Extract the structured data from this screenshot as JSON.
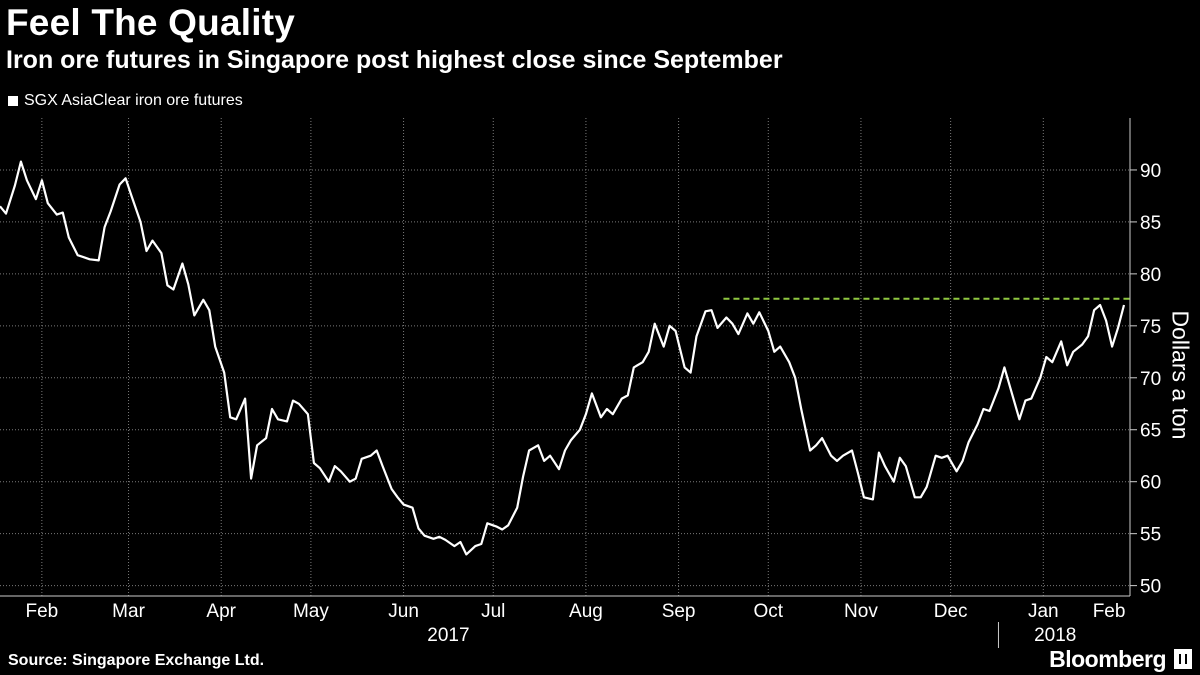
{
  "header": {
    "title": "Feel The Quality",
    "subtitle": "Iron ore futures in Singapore post highest close since September"
  },
  "footer": {
    "source": "Source: Singapore Exchange Ltd.",
    "brand": "Bloomberg"
  },
  "chart_data": {
    "type": "line",
    "ylabel": "Dollars a ton",
    "ylim": [
      49,
      95
    ],
    "yticks": [
      50,
      55,
      60,
      65,
      70,
      75,
      80,
      85,
      90
    ],
    "grid": true,
    "legend_position": "top-left",
    "x_range": [
      "2017-02-01",
      "2018-02-14"
    ],
    "months": [
      {
        "label": "Feb",
        "date": "2017-02-01"
      },
      {
        "label": "Mar",
        "date": "2017-03-01"
      },
      {
        "label": "Apr",
        "date": "2017-04-01"
      },
      {
        "label": "May",
        "date": "2017-05-01"
      },
      {
        "label": "Jun",
        "date": "2017-06-01"
      },
      {
        "label": "Jul",
        "date": "2017-07-01"
      },
      {
        "label": "Aug",
        "date": "2017-08-01"
      },
      {
        "label": "Sep",
        "date": "2017-09-01"
      },
      {
        "label": "Oct",
        "date": "2017-10-01"
      },
      {
        "label": "Nov",
        "date": "2017-11-01"
      },
      {
        "label": "Dec",
        "date": "2017-12-01"
      },
      {
        "label": "Jan",
        "date": "2018-01-01"
      },
      {
        "label": "Feb",
        "date": "2018-02-01"
      }
    ],
    "years": [
      {
        "label": "2017",
        "date": "2017-07-01"
      },
      {
        "label": "2018",
        "date": "2018-01-20"
      }
    ],
    "year_divider": "2018-01-01",
    "series": [
      {
        "name": "SGX AsiaClear iron ore futures",
        "color": "#ffffff",
        "points": [
          [
            "2017-02-01",
            86.5
          ],
          [
            "2017-02-03",
            85.8
          ],
          [
            "2017-02-06",
            88.5
          ],
          [
            "2017-02-08",
            90.8
          ],
          [
            "2017-02-10",
            89.0
          ],
          [
            "2017-02-13",
            87.2
          ],
          [
            "2017-02-15",
            89.0
          ],
          [
            "2017-02-17",
            86.8
          ],
          [
            "2017-02-20",
            85.7
          ],
          [
            "2017-02-22",
            85.9
          ],
          [
            "2017-02-24",
            83.5
          ],
          [
            "2017-02-27",
            81.8
          ],
          [
            "2017-03-01",
            81.6
          ],
          [
            "2017-03-03",
            81.4
          ],
          [
            "2017-03-06",
            81.3
          ],
          [
            "2017-03-08",
            84.5
          ],
          [
            "2017-03-10",
            86.0
          ],
          [
            "2017-03-13",
            88.6
          ],
          [
            "2017-03-15",
            89.2
          ],
          [
            "2017-03-17",
            87.5
          ],
          [
            "2017-03-20",
            85.0
          ],
          [
            "2017-03-22",
            82.2
          ],
          [
            "2017-03-24",
            83.2
          ],
          [
            "2017-03-27",
            82.0
          ],
          [
            "2017-03-29",
            78.9
          ],
          [
            "2017-03-31",
            78.5
          ],
          [
            "2017-04-03",
            81.0
          ],
          [
            "2017-04-05",
            79.0
          ],
          [
            "2017-04-07",
            76.0
          ],
          [
            "2017-04-10",
            77.5
          ],
          [
            "2017-04-12",
            76.5
          ],
          [
            "2017-04-14",
            73.0
          ],
          [
            "2017-04-17",
            70.5
          ],
          [
            "2017-04-19",
            66.2
          ],
          [
            "2017-04-21",
            66.0
          ],
          [
            "2017-04-24",
            68.0
          ],
          [
            "2017-04-26",
            60.3
          ],
          [
            "2017-04-28",
            63.5
          ],
          [
            "2017-05-01",
            64.2
          ],
          [
            "2017-05-03",
            67.0
          ],
          [
            "2017-05-05",
            66.0
          ],
          [
            "2017-05-08",
            65.8
          ],
          [
            "2017-05-10",
            67.8
          ],
          [
            "2017-05-12",
            67.5
          ],
          [
            "2017-05-15",
            66.5
          ],
          [
            "2017-05-17",
            61.8
          ],
          [
            "2017-05-19",
            61.3
          ],
          [
            "2017-05-22",
            60.0
          ],
          [
            "2017-05-24",
            61.5
          ],
          [
            "2017-05-26",
            61.0
          ],
          [
            "2017-05-29",
            60.0
          ],
          [
            "2017-05-31",
            60.3
          ],
          [
            "2017-06-02",
            62.2
          ],
          [
            "2017-06-05",
            62.5
          ],
          [
            "2017-06-07",
            63.0
          ],
          [
            "2017-06-09",
            61.5
          ],
          [
            "2017-06-12",
            59.3
          ],
          [
            "2017-06-14",
            58.5
          ],
          [
            "2017-06-16",
            57.8
          ],
          [
            "2017-06-19",
            57.5
          ],
          [
            "2017-06-21",
            55.5
          ],
          [
            "2017-06-23",
            54.8
          ],
          [
            "2017-06-26",
            54.5
          ],
          [
            "2017-06-28",
            54.7
          ],
          [
            "2017-06-30",
            54.4
          ],
          [
            "2017-07-03",
            53.8
          ],
          [
            "2017-07-05",
            54.2
          ],
          [
            "2017-07-07",
            53.0
          ],
          [
            "2017-07-10",
            53.8
          ],
          [
            "2017-07-12",
            54.0
          ],
          [
            "2017-07-14",
            56.0
          ],
          [
            "2017-07-17",
            55.7
          ],
          [
            "2017-07-19",
            55.4
          ],
          [
            "2017-07-21",
            55.8
          ],
          [
            "2017-07-24",
            57.5
          ],
          [
            "2017-07-26",
            60.5
          ],
          [
            "2017-07-28",
            63.0
          ],
          [
            "2017-07-31",
            63.5
          ],
          [
            "2017-08-02",
            62.0
          ],
          [
            "2017-08-04",
            62.5
          ],
          [
            "2017-08-07",
            61.2
          ],
          [
            "2017-08-09",
            63.0
          ],
          [
            "2017-08-11",
            64.0
          ],
          [
            "2017-08-14",
            65.0
          ],
          [
            "2017-08-16",
            66.5
          ],
          [
            "2017-08-18",
            68.5
          ],
          [
            "2017-08-21",
            66.2
          ],
          [
            "2017-08-23",
            67.0
          ],
          [
            "2017-08-25",
            66.5
          ],
          [
            "2017-08-28",
            68.0
          ],
          [
            "2017-08-30",
            68.3
          ],
          [
            "2017-09-01",
            71.0
          ],
          [
            "2017-09-04",
            71.5
          ],
          [
            "2017-09-06",
            72.5
          ],
          [
            "2017-09-08",
            75.2
          ],
          [
            "2017-09-11",
            73.0
          ],
          [
            "2017-09-13",
            75.0
          ],
          [
            "2017-09-15",
            74.5
          ],
          [
            "2017-09-18",
            71.0
          ],
          [
            "2017-09-20",
            70.5
          ],
          [
            "2017-09-22",
            74.0
          ],
          [
            "2017-09-25",
            76.4
          ],
          [
            "2017-09-27",
            76.5
          ],
          [
            "2017-09-29",
            74.8
          ],
          [
            "2017-10-02",
            75.8
          ],
          [
            "2017-10-04",
            75.2
          ],
          [
            "2017-10-06",
            74.2
          ],
          [
            "2017-10-09",
            76.2
          ],
          [
            "2017-10-11",
            75.2
          ],
          [
            "2017-10-13",
            76.3
          ],
          [
            "2017-10-16",
            74.5
          ],
          [
            "2017-10-18",
            72.5
          ],
          [
            "2017-10-20",
            73.0
          ],
          [
            "2017-10-23",
            71.5
          ],
          [
            "2017-10-25",
            70.0
          ],
          [
            "2017-10-27",
            67.0
          ],
          [
            "2017-10-30",
            63.0
          ],
          [
            "2017-11-01",
            63.5
          ],
          [
            "2017-11-03",
            64.2
          ],
          [
            "2017-11-06",
            62.5
          ],
          [
            "2017-11-08",
            62.0
          ],
          [
            "2017-11-10",
            62.5
          ],
          [
            "2017-11-13",
            63.0
          ],
          [
            "2017-11-15",
            60.8
          ],
          [
            "2017-11-17",
            58.5
          ],
          [
            "2017-11-20",
            58.3
          ],
          [
            "2017-11-22",
            62.8
          ],
          [
            "2017-11-24",
            61.5
          ],
          [
            "2017-11-27",
            60.0
          ],
          [
            "2017-11-29",
            62.3
          ],
          [
            "2017-12-01",
            61.5
          ],
          [
            "2017-12-04",
            58.5
          ],
          [
            "2017-12-06",
            58.5
          ],
          [
            "2017-12-08",
            59.5
          ],
          [
            "2017-12-11",
            62.5
          ],
          [
            "2017-12-13",
            62.3
          ],
          [
            "2017-12-15",
            62.5
          ],
          [
            "2017-12-18",
            61.0
          ],
          [
            "2017-12-20",
            62.0
          ],
          [
            "2017-12-22",
            63.8
          ],
          [
            "2017-12-25",
            65.5
          ],
          [
            "2017-12-27",
            67.0
          ],
          [
            "2017-12-29",
            66.8
          ],
          [
            "2018-01-01",
            69.0
          ],
          [
            "2018-01-03",
            71.0
          ],
          [
            "2018-01-05",
            69.0
          ],
          [
            "2018-01-08",
            66.0
          ],
          [
            "2018-01-10",
            67.8
          ],
          [
            "2018-01-12",
            68.0
          ],
          [
            "2018-01-15",
            70.0
          ],
          [
            "2018-01-17",
            72.0
          ],
          [
            "2018-01-19",
            71.5
          ],
          [
            "2018-01-22",
            73.5
          ],
          [
            "2018-01-24",
            71.2
          ],
          [
            "2018-01-26",
            72.5
          ],
          [
            "2018-01-29",
            73.2
          ],
          [
            "2018-01-31",
            74.0
          ],
          [
            "2018-02-02",
            76.5
          ],
          [
            "2018-02-04",
            77.0
          ],
          [
            "2018-02-06",
            75.5
          ],
          [
            "2018-02-08",
            73.0
          ],
          [
            "2018-02-10",
            74.8
          ],
          [
            "2018-02-12",
            77.0
          ]
        ]
      }
    ],
    "reference_line": {
      "name": "highest close since September",
      "value": 77.6,
      "from": "2017-10-01",
      "to": "2018-02-14",
      "color": "#8fc740"
    }
  }
}
